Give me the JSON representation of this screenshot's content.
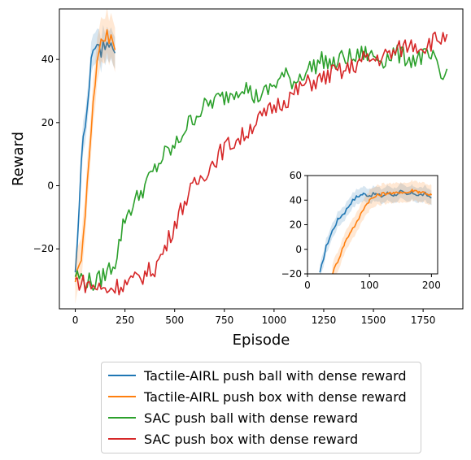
{
  "chart_data": [
    {
      "type": "line",
      "title": "",
      "xlabel": "Episode",
      "ylabel": "Reward",
      "xlim": [
        -80,
        1950
      ],
      "ylim": [
        -39,
        56
      ],
      "xticks": [
        0,
        250,
        500,
        750,
        1000,
        1250,
        1500,
        1750
      ],
      "xtick_labels": [
        "0",
        "250",
        "500",
        "750",
        "1000",
        "1250",
        "1500",
        "1750"
      ],
      "yticks": [
        -20,
        0,
        20,
        40
      ],
      "ytick_labels": [
        "−20",
        "0",
        "20",
        "40"
      ],
      "grid": false,
      "legend": "below",
      "series": [
        {
          "name": "Tactile-AIRL push ball with dense reward",
          "color": "#1f77b4",
          "x": [
            0,
            10,
            20,
            30,
            40,
            50,
            60,
            70,
            80,
            90,
            100,
            110,
            120,
            130,
            140,
            150,
            160,
            170,
            180,
            190,
            200
          ],
          "y": [
            -29,
            -20,
            -5,
            8,
            14,
            20,
            25,
            31,
            40,
            44,
            45,
            43,
            45,
            42,
            46,
            44,
            47,
            43,
            46,
            44,
            42
          ],
          "band": 5
        },
        {
          "name": "Tactile-AIRL push box with dense reward",
          "color": "#ff7f0e",
          "x": [
            0,
            10,
            20,
            30,
            40,
            50,
            60,
            70,
            80,
            90,
            100,
            110,
            120,
            130,
            140,
            150,
            160,
            170,
            180,
            190,
            200
          ],
          "y": [
            -29,
            -28,
            -26,
            -22,
            -15,
            -8,
            0,
            10,
            17,
            26,
            33,
            40,
            44,
            46,
            47,
            45,
            48,
            46,
            47,
            46,
            43
          ],
          "band": 7
        },
        {
          "name": "SAC push ball with dense reward",
          "color": "#2ca02c",
          "x": [
            0,
            50,
            100,
            150,
            200,
            250,
            300,
            350,
            400,
            450,
            500,
            550,
            600,
            650,
            700,
            750,
            800,
            850,
            900,
            950,
            1000,
            1050,
            1100,
            1150,
            1200,
            1250,
            1300,
            1350,
            1400,
            1450,
            1500,
            1550,
            1600,
            1650,
            1700,
            1750,
            1800,
            1850,
            1870
          ],
          "y": [
            -28,
            -30,
            -31,
            -28,
            -24,
            -10,
            -5,
            0,
            5,
            10,
            12,
            18,
            22,
            25,
            27,
            28,
            30,
            32,
            28,
            29,
            32,
            35,
            33,
            36,
            38,
            40,
            38,
            41,
            40,
            42,
            41,
            40,
            42,
            41,
            40,
            41,
            40,
            33,
            37
          ]
        },
        {
          "name": "SAC push box with dense reward",
          "color": "#d62728",
          "x": [
            0,
            50,
            100,
            150,
            200,
            250,
            300,
            350,
            400,
            450,
            500,
            550,
            600,
            650,
            700,
            750,
            800,
            850,
            900,
            950,
            1000,
            1050,
            1100,
            1150,
            1200,
            1250,
            1300,
            1350,
            1400,
            1450,
            1500,
            1550,
            1600,
            1650,
            1700,
            1750,
            1800,
            1850,
            1870
          ],
          "y": [
            -30,
            -31,
            -32,
            -33,
            -32,
            -31,
            -30,
            -28,
            -26,
            -20,
            -12,
            -5,
            0,
            4,
            8,
            12,
            14,
            16,
            20,
            22,
            25,
            27,
            29,
            32,
            33,
            34,
            36,
            36,
            38,
            40,
            40,
            41,
            42,
            44,
            45,
            44,
            46,
            47,
            48
          ]
        }
      ]
    },
    {
      "type": "line",
      "title": "",
      "xlabel": "",
      "ylabel": "",
      "xlim": [
        0,
        210
      ],
      "ylim": [
        -20,
        60
      ],
      "xticks": [
        0,
        100,
        200
      ],
      "xtick_labels": [
        "0",
        "100",
        "200"
      ],
      "yticks": [
        -20,
        0,
        20,
        40,
        60
      ],
      "ytick_labels": [
        "−20",
        "0",
        "20",
        "40",
        "60"
      ],
      "grid": false,
      "series": [
        {
          "color": "#1f77b4",
          "x": [
            20,
            30,
            40,
            50,
            60,
            70,
            80,
            90,
            100,
            110,
            120,
            130,
            140,
            150,
            160,
            170,
            180,
            190,
            200
          ],
          "y": [
            -20,
            2,
            15,
            25,
            30,
            38,
            43,
            45,
            44,
            45,
            43,
            46,
            44,
            47,
            44,
            46,
            44,
            45,
            42
          ],
          "band": 6
        },
        {
          "color": "#ff7f0e",
          "x": [
            40,
            50,
            60,
            70,
            80,
            90,
            100,
            110,
            120,
            130,
            140,
            150,
            160,
            170,
            180,
            190,
            200
          ],
          "y": [
            -20,
            -8,
            5,
            15,
            22,
            33,
            40,
            43,
            45,
            46,
            45,
            47,
            46,
            48,
            47,
            46,
            44
          ],
          "band": 8
        }
      ]
    }
  ]
}
